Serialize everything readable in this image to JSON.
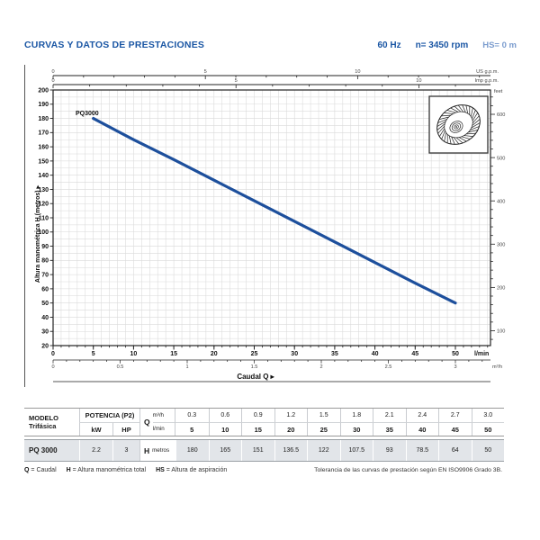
{
  "header": {
    "title": "CURVAS Y DATOS DE PRESTACIONES",
    "frequency": "60 Hz",
    "speed": "n= 3450 rpm",
    "suction_head": "HS= 0 m"
  },
  "chart_data": {
    "type": "line",
    "title": "",
    "xlabel": "Caudal Q  ▸",
    "ylabel": "Altura manométrica H (metros)  ▸",
    "grid": true,
    "xlim_lmin": [
      0,
      54.4
    ],
    "ylim_m": [
      20,
      200
    ],
    "series": [
      {
        "name": "PQ3000",
        "x_lmin": [
          5,
          10,
          15,
          20,
          25,
          30,
          35,
          40,
          45,
          50
        ],
        "H_m": [
          180,
          165,
          151,
          136.5,
          122,
          107.5,
          93,
          78.5,
          64,
          50
        ]
      }
    ],
    "axes": {
      "y_left": {
        "label": "Altura manométrica H (metros)",
        "min": 20,
        "max": 200,
        "step": 10
      },
      "x_lmin": {
        "label": "l/min",
        "min": 0,
        "max": 50,
        "step": 5
      },
      "x_m3h": {
        "label": "m³/h",
        "ticks": [
          0,
          0.5,
          1,
          1.5,
          2,
          2.5,
          3
        ]
      },
      "x_usgpm": {
        "label": "US g.p.m.",
        "ticks": [
          0,
          5,
          10
        ]
      },
      "x_impgpm": {
        "label": "Imp g.p.m.",
        "ticks": [
          0,
          5,
          10
        ]
      },
      "y_feet": {
        "label": "feet",
        "ticks": [
          100,
          200,
          300,
          400,
          500,
          600
        ]
      }
    },
    "colors": {
      "curve": "#1d4f9c",
      "grid": "#d9d9d9",
      "axis": "#222222"
    },
    "icons": [
      "impeller-icon"
    ]
  },
  "table": {
    "model_header_1": "MODELO",
    "model_header_2": "Trifásica",
    "power_header": "POTENCIA (P2)",
    "kw_label": "kW",
    "hp_label": "HP",
    "q_label": "Q",
    "q_unit_1": "m³/h",
    "q_unit_2": "l/min",
    "h_label": "H",
    "h_unit": "metros",
    "model": "PQ 3000",
    "kw": "2.2",
    "hp": "3",
    "m3h": [
      "0.3",
      "0.6",
      "0.9",
      "1.2",
      "1.5",
      "1.8",
      "2.1",
      "2.4",
      "2.7",
      "3.0"
    ],
    "lmin": [
      "5",
      "10",
      "15",
      "20",
      "25",
      "30",
      "35",
      "40",
      "45",
      "50"
    ],
    "H": [
      "180",
      "165",
      "151",
      "136.5",
      "122",
      "107.5",
      "93",
      "78.5",
      "64",
      "50"
    ]
  },
  "footer": {
    "legend": {
      "q_key": "Q",
      "q_val": "= Caudal",
      "h_key": "H",
      "h_val": "= Altura manométrica total",
      "hs_key": "HS",
      "hs_val": "= Altura de aspiración"
    },
    "tolerance": "Tolerancia de las curvas de prestación según EN ISO9906 Grado 3B."
  },
  "colors": {
    "accent_blue": "#1a56a4",
    "light_blue": "#7b9cce",
    "table_row_bg": "#e2e5e9"
  }
}
